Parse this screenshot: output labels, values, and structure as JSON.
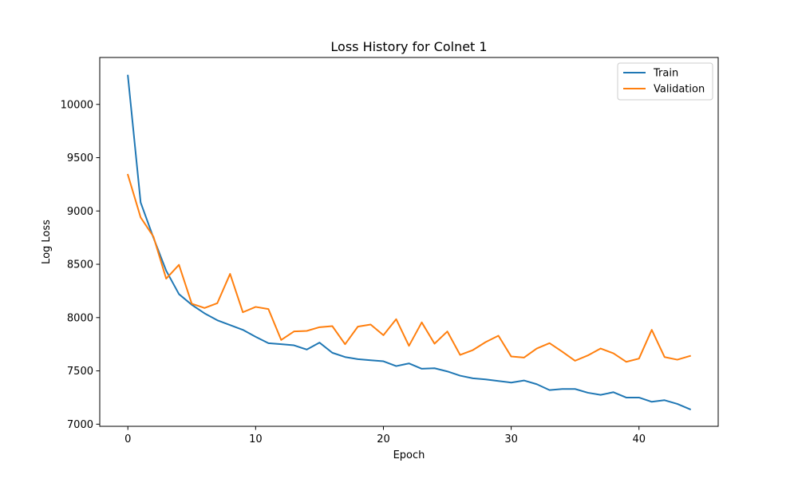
{
  "chart_data": {
    "type": "line",
    "title": "Loss History for Colnet 1",
    "xlabel": "Epoch",
    "ylabel": "Log Loss",
    "xlim": [
      -2.2,
      46.2
    ],
    "ylim": [
      6980,
      10440
    ],
    "xticks": [
      0,
      10,
      20,
      30,
      40
    ],
    "yticks": [
      7000,
      7500,
      8000,
      8500,
      9000,
      9500,
      10000
    ],
    "grid": false,
    "legend_position": "upper right",
    "x": [
      0,
      1,
      2,
      3,
      4,
      5,
      6,
      7,
      8,
      9,
      10,
      11,
      12,
      13,
      14,
      15,
      16,
      17,
      18,
      19,
      20,
      21,
      22,
      23,
      24,
      25,
      26,
      27,
      28,
      29,
      30,
      31,
      32,
      33,
      34,
      35,
      36,
      37,
      38,
      39,
      40,
      41,
      42,
      43,
      44
    ],
    "series": [
      {
        "name": "Train",
        "color": "#1f77b4",
        "values": [
          10270,
          9080,
          8750,
          8440,
          8220,
          8120,
          8040,
          7975,
          7930,
          7885,
          7820,
          7760,
          7750,
          7740,
          7700,
          7765,
          7670,
          7630,
          7610,
          7600,
          7590,
          7545,
          7570,
          7520,
          7525,
          7495,
          7455,
          7430,
          7420,
          7405,
          7390,
          7410,
          7375,
          7320,
          7330,
          7330,
          7295,
          7275,
          7300,
          7250,
          7250,
          7210,
          7225,
          7190,
          7140
        ]
      },
      {
        "name": "Validation",
        "color": "#ff7f0e",
        "values": [
          9340,
          8940,
          8760,
          8365,
          8495,
          8130,
          8090,
          8135,
          8410,
          8050,
          8100,
          8080,
          7790,
          7870,
          7875,
          7910,
          7920,
          7750,
          7915,
          7935,
          7835,
          7985,
          7735,
          7955,
          7755,
          7870,
          7650,
          7695,
          7770,
          7830,
          7635,
          7625,
          7710,
          7760,
          7680,
          7595,
          7645,
          7710,
          7665,
          7585,
          7615,
          7885,
          7630,
          7605,
          7640
        ]
      }
    ]
  }
}
